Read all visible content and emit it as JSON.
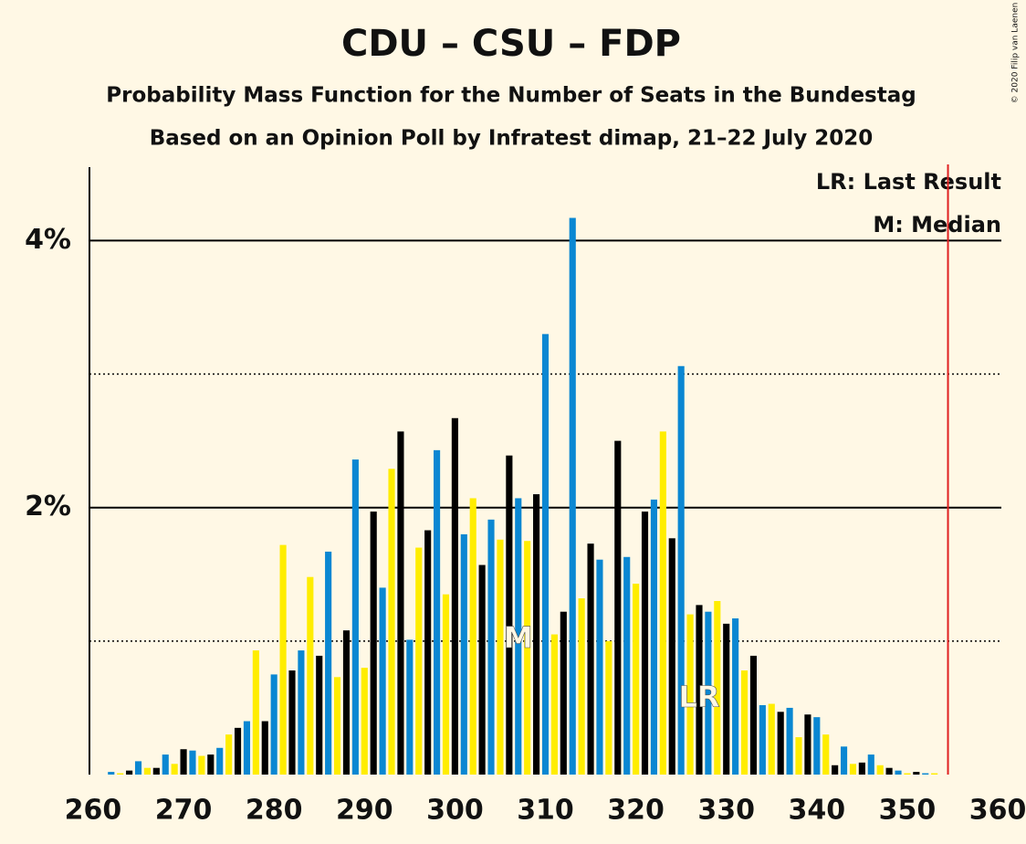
{
  "chart_data": {
    "type": "bar",
    "title": "CDU – CSU – FDP",
    "subtitle": "Probability Mass Function for the Number of Seats in the Bundestag",
    "subtitle2": "Based on an Opinion Poll by Infratest dimap, 21–22 July 2020",
    "copyright": "© 2020 Filip van Laenen",
    "legend": [
      "LR: Last Result",
      "M: Median"
    ],
    "x": [
      260,
      261,
      262,
      263,
      264,
      265,
      266,
      267,
      268,
      269,
      270,
      271,
      272,
      273,
      274,
      275,
      276,
      277,
      278,
      279,
      280,
      281,
      282,
      283,
      284,
      285,
      286,
      287,
      288,
      289,
      290,
      291,
      292,
      293,
      294,
      295,
      296,
      297,
      298,
      299,
      300,
      301,
      302,
      303,
      304,
      305,
      306,
      307,
      308,
      309,
      310,
      311,
      312,
      313,
      314,
      315,
      316,
      317,
      318,
      319,
      320,
      321,
      322,
      323,
      324,
      325,
      326,
      327,
      328,
      329,
      330,
      331,
      332,
      333,
      334,
      335,
      336,
      337,
      338,
      339,
      340,
      341,
      342,
      343,
      344,
      345,
      346,
      347,
      348,
      349,
      350,
      351,
      352,
      353,
      354,
      355,
      356,
      357,
      358,
      359,
      360
    ],
    "values": [
      0,
      0,
      0.02,
      0.01,
      0.03,
      0.1,
      0.05,
      0.05,
      0.15,
      0.08,
      0.19,
      0.18,
      0.14,
      0.15,
      0.2,
      0.3,
      0.35,
      0.4,
      0.93,
      0.4,
      0.75,
      1.72,
      0.78,
      0.93,
      1.48,
      0.89,
      1.67,
      0.73,
      1.08,
      2.36,
      0.8,
      1.97,
      1.4,
      2.29,
      2.57,
      1.01,
      1.7,
      1.83,
      2.43,
      1.35,
      2.67,
      1.8,
      2.07,
      1.57,
      1.91,
      1.76,
      2.39,
      2.07,
      1.75,
      2.1,
      3.3,
      1.05,
      1.22,
      4.17,
      1.32,
      1.73,
      1.61,
      1.0,
      2.5,
      1.63,
      1.43,
      1.97,
      2.06,
      2.57,
      1.77,
      3.06,
      1.2,
      1.27,
      1.22,
      1.3,
      1.13,
      1.17,
      0.78,
      0.89,
      0.52,
      0.53,
      0.47,
      0.5,
      0.28,
      0.45,
      0.43,
      0.3,
      0.07,
      0.21,
      0.08,
      0.09,
      0.15,
      0.07,
      0.05,
      0.03,
      0.01,
      0.02,
      0.01,
      0.01,
      0,
      0,
      0,
      0,
      0,
      0,
      0
    ],
    "colors": [
      "#ffed00",
      "#000000",
      "#0a87d2"
    ],
    "annotations": [
      {
        "text": "M",
        "x": 307
      },
      {
        "text": "LR",
        "x": 327
      }
    ],
    "majority_line": 354.5,
    "majority_color": "#e02020",
    "xlim": [
      259.6,
      360.4
    ],
    "xticks": [
      260,
      270,
      280,
      290,
      300,
      310,
      320,
      330,
      340,
      350,
      360
    ],
    "ylim": [
      0,
      4.55
    ],
    "yticks": [
      {
        "value": 2,
        "label": "2%"
      },
      {
        "value": 4,
        "label": "4%"
      }
    ],
    "minor_yticks": [
      1,
      3
    ]
  }
}
